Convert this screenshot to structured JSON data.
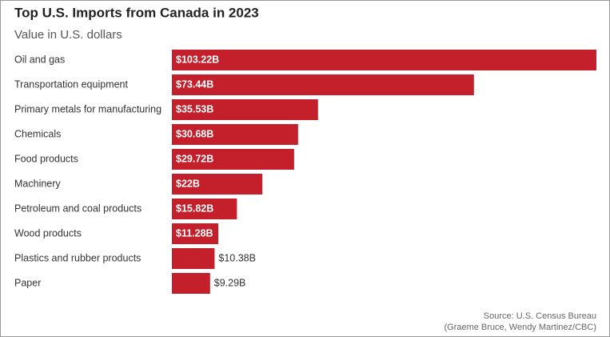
{
  "chart_data": {
    "type": "bar",
    "orientation": "horizontal",
    "title": "Top U.S. Imports from Canada in 2023",
    "subtitle": "Value in U.S. dollars",
    "categories": [
      "Oil and gas",
      "Transportation equipment",
      "Primary metals for manufacturing",
      "Chemicals",
      "Food products",
      "Machinery",
      "Petroleum and coal products",
      "Wood products",
      "Plastics and rubber products",
      "Paper"
    ],
    "values": [
      103.22,
      73.44,
      35.53,
      30.68,
      29.72,
      22,
      15.82,
      11.28,
      10.38,
      9.29
    ],
    "value_labels": [
      "$103.22B",
      "$73.44B",
      "$35.53B",
      "$30.68B",
      "$29.72B",
      "$22B",
      "$15.82B",
      "$11.28B",
      "$10.38B",
      "$9.29B"
    ],
    "color": "#c3202b",
    "source": [
      "Source: U.S. Census Bureau",
      "(Graeme Bruce, Wendy Martinez/CBC)"
    ]
  }
}
